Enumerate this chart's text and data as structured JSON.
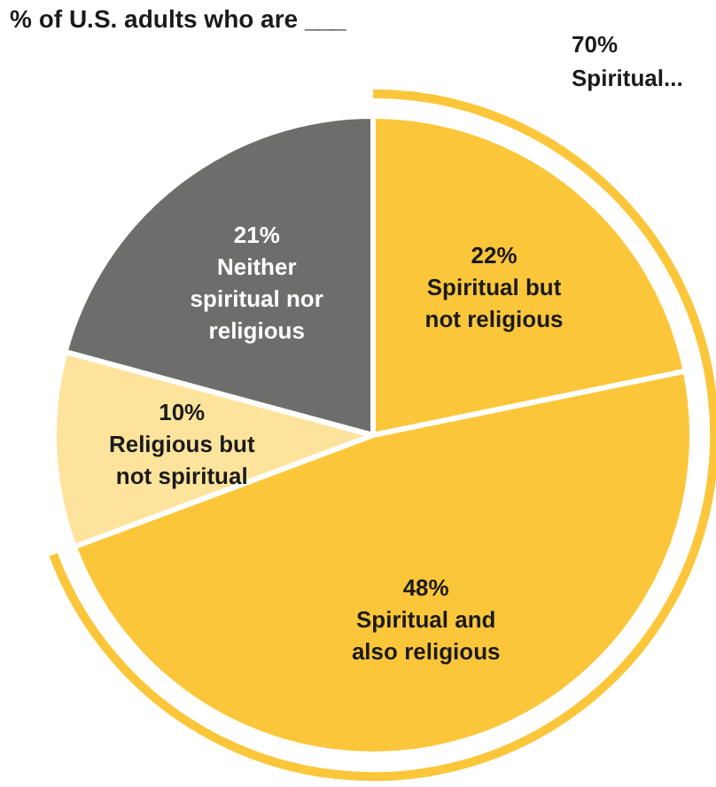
{
  "chart_data": {
    "type": "pie",
    "title": "% of U.S. adults who are ___",
    "categories": [
      "Spiritual but not religious",
      "Spiritual and also religious",
      "Religious but not spiritual",
      "Neither spiritual nor religious"
    ],
    "values": [
      22,
      48,
      10,
      21
    ],
    "value_labels": [
      "22%",
      "48%",
      "10%",
      "21%"
    ],
    "colors": [
      "#fcc63a",
      "#fcc63a",
      "#fde39c",
      "#6d6d6b"
    ],
    "annotations": [
      "70% Spiritual..."
    ]
  }
}
